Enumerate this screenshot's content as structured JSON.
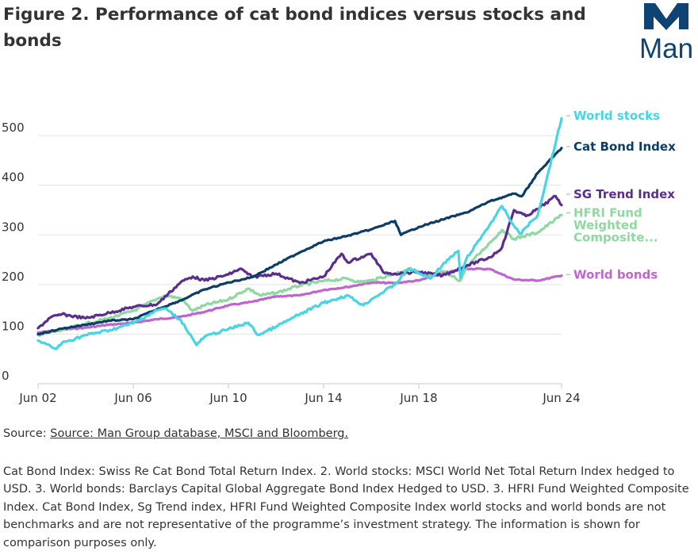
{
  "header": {
    "title": "Figure 2. Performance of cat bond indices versus stocks and bonds",
    "logo_text": "Man",
    "logo_color": "#0e4374"
  },
  "footer": {
    "source_prefix": "Source:",
    "source_link": "Source: Man Group database, MSCI and Bloomberg.",
    "notes": "Cat Bond Index: Swiss Re Cat Bond Total Return Index. 2. World stocks: MSCI World Net Total Return Index hedged to USD. 3. World bonds: Barclays Capital Global Aggregate Bond Index Hedged to USD. 3. HFRI Fund Weighted Composite Index. Cat Bond Index, Sg Trend index, HFRI Fund Weighted Composite Index world stocks and world bonds are not benchmarks and are not representative of the programme’s investment strategy. The information is shown for comparison purposes only."
  },
  "chart_data": {
    "type": "line",
    "x_type": "date",
    "xlim": [
      "2002-06",
      "2024-06"
    ],
    "ylim": [
      0,
      560
    ],
    "y_ticks": [
      0,
      100,
      200,
      300,
      400,
      500
    ],
    "x_ticks": [
      {
        "date": "2002-06",
        "label": "Jun 02"
      },
      {
        "date": "2006-06",
        "label": "Jun 06"
      },
      {
        "date": "2010-06",
        "label": "Jun 10"
      },
      {
        "date": "2014-06",
        "label": "Jun 14"
      },
      {
        "date": "2018-06",
        "label": "Jun 18"
      },
      {
        "date": "2024-06",
        "label": "Jun 24"
      }
    ],
    "gridlines": true,
    "legend": "direct labels at right end of lines",
    "series": [
      {
        "name": "World bonds",
        "color": "#c065cf",
        "label_lines": [
          "World bonds"
        ],
        "points": [
          [
            "2002-06",
            103
          ],
          [
            "2003-06",
            109
          ],
          [
            "2004-06",
            113
          ],
          [
            "2005-06",
            119
          ],
          [
            "2006-06",
            123
          ],
          [
            "2007-06",
            130
          ],
          [
            "2008-06",
            135
          ],
          [
            "2009-06",
            145
          ],
          [
            "2010-06",
            158
          ],
          [
            "2011-06",
            165
          ],
          [
            "2012-06",
            176
          ],
          [
            "2013-06",
            178
          ],
          [
            "2014-06",
            189
          ],
          [
            "2015-06",
            195
          ],
          [
            "2016-06",
            204
          ],
          [
            "2017-06",
            203
          ],
          [
            "2018-06",
            208
          ],
          [
            "2019-06",
            223
          ],
          [
            "2020-06",
            232
          ],
          [
            "2021-06",
            231
          ],
          [
            "2022-06",
            210
          ],
          [
            "2023-06",
            208
          ],
          [
            "2024-06",
            218
          ]
        ]
      },
      {
        "name": "HFRI Fund Weighted Composite...",
        "color": "#8ed9a0",
        "label_lines": [
          "HFRI Fund",
          "Weighted",
          "Composite..."
        ],
        "points": [
          [
            "2002-06",
            98
          ],
          [
            "2003-06",
            108
          ],
          [
            "2004-06",
            121
          ],
          [
            "2005-06",
            132
          ],
          [
            "2006-06",
            147
          ],
          [
            "2007-06",
            171
          ],
          [
            "2007-10",
            178
          ],
          [
            "2008-06",
            172
          ],
          [
            "2008-12",
            147
          ],
          [
            "2009-06",
            158
          ],
          [
            "2010-06",
            170
          ],
          [
            "2011-04",
            192
          ],
          [
            "2011-10",
            178
          ],
          [
            "2012-06",
            183
          ],
          [
            "2013-06",
            198
          ],
          [
            "2014-06",
            207
          ],
          [
            "2015-06",
            212
          ],
          [
            "2015-12",
            205
          ],
          [
            "2016-06",
            208
          ],
          [
            "2017-06",
            222
          ],
          [
            "2018-01",
            232
          ],
          [
            "2018-12",
            217
          ],
          [
            "2019-06",
            226
          ],
          [
            "2020-03",
            208
          ],
          [
            "2020-06",
            235
          ],
          [
            "2021-06",
            285
          ],
          [
            "2021-12",
            310
          ],
          [
            "2022-06",
            292
          ],
          [
            "2023-06",
            305
          ],
          [
            "2024-06",
            340
          ]
        ]
      },
      {
        "name": "SG Trend Index",
        "color": "#5b2d8e",
        "label_lines": [
          "SG Trend Index"
        ],
        "points": [
          [
            "2002-06",
            112
          ],
          [
            "2002-12",
            133
          ],
          [
            "2003-06",
            140
          ],
          [
            "2004-06",
            132
          ],
          [
            "2005-06",
            143
          ],
          [
            "2006-06",
            155
          ],
          [
            "2007-06",
            160
          ],
          [
            "2008-06",
            205
          ],
          [
            "2008-12",
            216
          ],
          [
            "2009-06",
            208
          ],
          [
            "2010-06",
            220
          ],
          [
            "2010-12",
            232
          ],
          [
            "2011-06",
            215
          ],
          [
            "2012-06",
            222
          ],
          [
            "2013-06",
            203
          ],
          [
            "2014-06",
            216
          ],
          [
            "2015-03",
            262
          ],
          [
            "2015-06",
            245
          ],
          [
            "2016-06",
            262
          ],
          [
            "2016-12",
            225
          ],
          [
            "2017-06",
            222
          ],
          [
            "2018-06",
            225
          ],
          [
            "2019-06",
            218
          ],
          [
            "2020-06",
            238
          ],
          [
            "2021-06",
            255
          ],
          [
            "2021-12",
            275
          ],
          [
            "2022-06",
            350
          ],
          [
            "2022-12",
            338
          ],
          [
            "2023-06",
            352
          ],
          [
            "2024-03",
            378
          ],
          [
            "2024-06",
            360
          ]
        ]
      },
      {
        "name": "Cat Bond Index",
        "color": "#0b3d66",
        "label_lines": [
          "Cat Bond Index"
        ],
        "points": [
          [
            "2002-06",
            100
          ],
          [
            "2003-06",
            111
          ],
          [
            "2004-06",
            119
          ],
          [
            "2005-06",
            127
          ],
          [
            "2006-06",
            130
          ],
          [
            "2007-06",
            150
          ],
          [
            "2008-06",
            168
          ],
          [
            "2009-06",
            190
          ],
          [
            "2010-06",
            204
          ],
          [
            "2011-06",
            215
          ],
          [
            "2012-06",
            240
          ],
          [
            "2013-06",
            265
          ],
          [
            "2014-06",
            287
          ],
          [
            "2015-06",
            298
          ],
          [
            "2016-06",
            311
          ],
          [
            "2017-06",
            328
          ],
          [
            "2017-09",
            300
          ],
          [
            "2018-06",
            316
          ],
          [
            "2019-06",
            331
          ],
          [
            "2020-06",
            345
          ],
          [
            "2021-06",
            368
          ],
          [
            "2022-06",
            383
          ],
          [
            "2022-10",
            378
          ],
          [
            "2023-06",
            425
          ],
          [
            "2024-06",
            475
          ]
        ]
      },
      {
        "name": "World stocks",
        "color": "#47d5e5",
        "label_lines": [
          "World stocks"
        ],
        "points": [
          [
            "2002-06",
            87
          ],
          [
            "2003-03",
            70
          ],
          [
            "2003-06",
            82
          ],
          [
            "2004-06",
            98
          ],
          [
            "2005-06",
            108
          ],
          [
            "2006-06",
            122
          ],
          [
            "2007-06",
            148
          ],
          [
            "2007-10",
            152
          ],
          [
            "2008-06",
            128
          ],
          [
            "2009-02",
            78
          ],
          [
            "2009-06",
            95
          ],
          [
            "2010-06",
            110
          ],
          [
            "2011-04",
            123
          ],
          [
            "2011-09",
            98
          ],
          [
            "2012-06",
            115
          ],
          [
            "2013-06",
            140
          ],
          [
            "2014-06",
            163
          ],
          [
            "2015-06",
            178
          ],
          [
            "2016-02",
            158
          ],
          [
            "2016-06",
            170
          ],
          [
            "2017-06",
            200
          ],
          [
            "2018-01",
            232
          ],
          [
            "2018-12",
            212
          ],
          [
            "2019-06",
            240
          ],
          [
            "2020-02",
            268
          ],
          [
            "2020-03",
            213
          ],
          [
            "2020-06",
            252
          ],
          [
            "2021-06",
            322
          ],
          [
            "2021-12",
            358
          ],
          [
            "2022-06",
            318
          ],
          [
            "2022-09",
            302
          ],
          [
            "2023-06",
            340
          ],
          [
            "2024-06",
            535
          ]
        ]
      }
    ]
  }
}
